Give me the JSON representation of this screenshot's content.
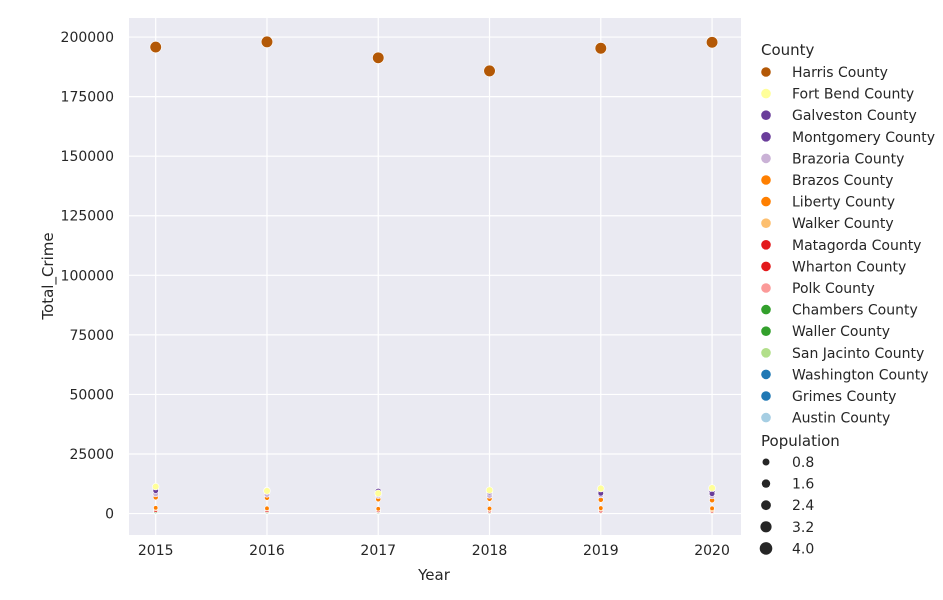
{
  "chart_data": {
    "type": "scatter",
    "xlabel": "Year",
    "ylabel": "Total_Crime",
    "x": [
      2015,
      2016,
      2017,
      2018,
      2019,
      2020
    ],
    "xlim": [
      2014.76,
      2020.26
    ],
    "ylim": [
      -9000,
      208000
    ],
    "xticks": [
      "2015",
      "2016",
      "2017",
      "2018",
      "2019",
      "2020"
    ],
    "yticks": [
      "0",
      "25000",
      "50000",
      "75000",
      "100000",
      "125000",
      "150000",
      "175000",
      "200000"
    ],
    "grid": true,
    "background": "#eaeaf2",
    "legend_placement": "outside-right",
    "hue_title": "County",
    "size_title": "Population",
    "size_levels": [
      "0.8",
      "1.6",
      "2.4",
      "3.2",
      "4.0"
    ],
    "series": [
      {
        "name": "Harris County",
        "color": "#b35806",
        "values": [
          195800,
          198000,
          191300,
          185800,
          195300,
          197800
        ],
        "size": [
          4.7,
          4.7,
          4.7,
          4.7,
          4.7,
          4.7
        ]
      },
      {
        "name": "Fort Bend County",
        "color": "#ffff99",
        "values": [
          11300,
          9500,
          8500,
          9800,
          10500,
          10700
        ],
        "size": [
          0.75,
          0.78,
          0.8,
          0.82,
          0.83,
          0.85
        ]
      },
      {
        "name": "Galveston County",
        "color": "#6a3d9a",
        "values": [
          9600,
          9200,
          8000,
          9000,
          8500,
          8300
        ],
        "size": [
          0.33,
          0.33,
          0.34,
          0.34,
          0.34,
          0.35
        ]
      },
      {
        "name": "Montgomery County",
        "color": "#6a3d9a",
        "values": [
          10000,
          9800,
          9300,
          8800,
          9600,
          8900
        ],
        "size": [
          0.55,
          0.57,
          0.58,
          0.6,
          0.61,
          0.63
        ]
      },
      {
        "name": "Brazoria County",
        "color": "#cab2d6",
        "values": [
          8200,
          8000,
          7500,
          7600,
          7800,
          7400
        ],
        "size": [
          0.35,
          0.36,
          0.37,
          0.37,
          0.38,
          0.38
        ]
      },
      {
        "name": "Brazos County",
        "color": "#ff7f00",
        "values": [
          6800,
          6600,
          6000,
          6200,
          5800,
          5600
        ],
        "size": [
          0.2,
          0.21,
          0.21,
          0.22,
          0.22,
          0.23
        ]
      },
      {
        "name": "Liberty County",
        "color": "#ff7f00",
        "values": [
          2400,
          2200,
          2000,
          2100,
          2300,
          2200
        ],
        "size": [
          0.08,
          0.08,
          0.08,
          0.09,
          0.09,
          0.09
        ]
      },
      {
        "name": "Walker County",
        "color": "#fdbf6f",
        "values": [
          2000,
          1900,
          1800,
          1700,
          1800,
          1600
        ],
        "size": [
          0.07,
          0.07,
          0.07,
          0.07,
          0.07,
          0.07
        ]
      },
      {
        "name": "Matagorda County",
        "color": "#e31a1c",
        "values": [
          1400,
          1300,
          1300,
          1200,
          1200,
          1100
        ],
        "size": [
          0.04,
          0.04,
          0.04,
          0.04,
          0.04,
          0.04
        ]
      },
      {
        "name": "Wharton County",
        "color": "#e31a1c",
        "values": [
          1300,
          1200,
          1100,
          1100,
          1000,
          1000
        ],
        "size": [
          0.04,
          0.04,
          0.04,
          0.04,
          0.04,
          0.04
        ]
      },
      {
        "name": "Polk County",
        "color": "#fb9a99",
        "values": [
          1500,
          1400,
          1300,
          1300,
          1200,
          1200
        ],
        "size": [
          0.05,
          0.05,
          0.05,
          0.05,
          0.05,
          0.05
        ]
      },
      {
        "name": "Chambers County",
        "color": "#33a02c",
        "values": [
          900,
          850,
          800,
          800,
          850,
          800
        ],
        "size": [
          0.04,
          0.04,
          0.04,
          0.04,
          0.04,
          0.04
        ]
      },
      {
        "name": "Waller County",
        "color": "#33a02c",
        "values": [
          1000,
          950,
          900,
          900,
          950,
          900
        ],
        "size": [
          0.05,
          0.05,
          0.05,
          0.05,
          0.05,
          0.05
        ]
      },
      {
        "name": "San Jacinto County",
        "color": "#b2df8a",
        "values": [
          700,
          650,
          600,
          600,
          650,
          600
        ],
        "size": [
          0.03,
          0.03,
          0.03,
          0.03,
          0.03,
          0.03
        ]
      },
      {
        "name": "Washington County",
        "color": "#1f78b4",
        "values": [
          600,
          550,
          500,
          500,
          550,
          500
        ],
        "size": [
          0.03,
          0.03,
          0.03,
          0.03,
          0.03,
          0.03
        ]
      },
      {
        "name": "Grimes County",
        "color": "#1f78b4",
        "values": [
          500,
          450,
          400,
          400,
          450,
          400
        ],
        "size": [
          0.03,
          0.03,
          0.03,
          0.03,
          0.03,
          0.03
        ]
      },
      {
        "name": "Austin County",
        "color": "#a6cee3",
        "values": [
          400,
          350,
          300,
          300,
          350,
          300
        ],
        "size": [
          0.03,
          0.03,
          0.03,
          0.03,
          0.03,
          0.03
        ]
      }
    ]
  }
}
